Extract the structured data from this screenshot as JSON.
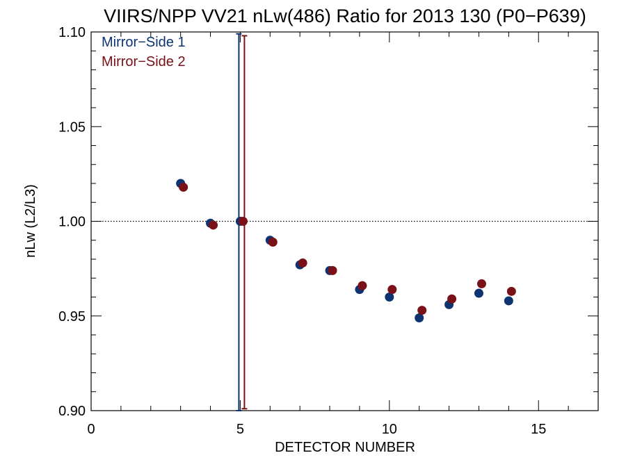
{
  "chart_data": {
    "type": "scatter",
    "title": "VIIRS/NPP VV21 nLw(486) Ratio for 2013 130 (P0−P639)",
    "xlabel": "DETECTOR NUMBER",
    "ylabel": "nLw (L2/L3)",
    "xlim": [
      0,
      17
    ],
    "ylim": [
      0.9,
      1.1
    ],
    "x_ticks": [
      0,
      5,
      10,
      15
    ],
    "x_tick_labels": [
      "0",
      "5",
      "10",
      "15"
    ],
    "y_ticks": [
      0.9,
      0.95,
      1.0,
      1.05,
      1.1
    ],
    "y_tick_labels": [
      "0.90",
      "0.95",
      "1.00",
      "1.05",
      "1.10"
    ],
    "reference_line": 1.0,
    "grid": false,
    "legend_position": "top-left",
    "series": [
      {
        "name": "Mirror−Side 1",
        "color": "#0d3470",
        "x": [
          3,
          4,
          5,
          6,
          7,
          8,
          9,
          10,
          11,
          12,
          13,
          14
        ],
        "y": [
          1.02,
          0.999,
          1.0,
          0.99,
          0.977,
          0.974,
          0.964,
          0.96,
          0.949,
          0.956,
          0.962,
          0.958
        ],
        "error_bar": {
          "x": 5,
          "low": 0.9,
          "high": 1.099
        }
      },
      {
        "name": "Mirror−Side 2",
        "color": "#7a1018",
        "x": [
          3,
          4,
          5,
          6,
          7,
          8,
          9,
          10,
          11,
          12,
          13,
          14
        ],
        "y": [
          1.018,
          0.998,
          1.0,
          0.989,
          0.978,
          0.974,
          0.966,
          0.964,
          0.953,
          0.959,
          0.967,
          0.963
        ],
        "error_bar": {
          "x": 5,
          "low": 0.901,
          "high": 1.098
        }
      }
    ]
  }
}
